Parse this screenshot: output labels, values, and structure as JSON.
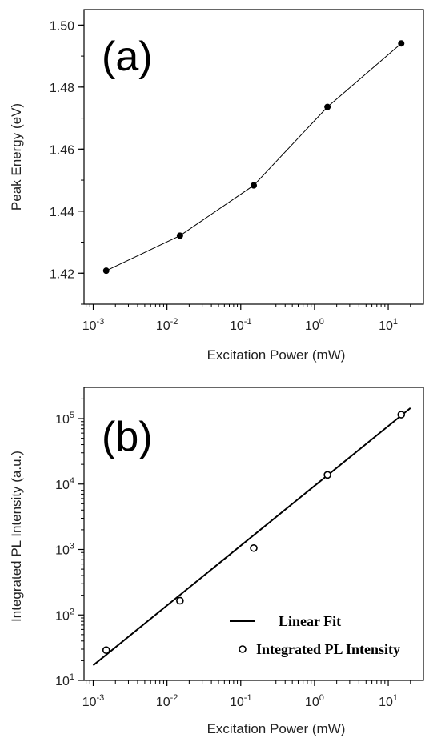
{
  "chart_data": [
    {
      "type": "line",
      "panel_label": "(a)",
      "xlabel": "Excitation Power (mW)",
      "ylabel": "Peak Energy (eV)",
      "xscale": "log",
      "xlim": [
        0.00075,
        30
      ],
      "ylim": [
        1.41,
        1.505
      ],
      "x_ticks": [
        {
          "base": "10",
          "exp": "-3",
          "value": 0.001
        },
        {
          "base": "10",
          "exp": "-2",
          "value": 0.01
        },
        {
          "base": "10",
          "exp": "-1",
          "value": 0.1
        },
        {
          "base": "10",
          "exp": "0",
          "value": 1
        },
        {
          "base": "10",
          "exp": "1",
          "value": 10
        }
      ],
      "y_ticks": [
        "1.42",
        "1.44",
        "1.46",
        "1.48",
        "1.50"
      ],
      "y_tick_values": [
        1.42,
        1.44,
        1.46,
        1.48,
        1.5
      ],
      "series": [
        {
          "x": [
            0.0015,
            0.015,
            0.15,
            1.5,
            15
          ],
          "y": [
            1.4208,
            1.4321,
            1.4483,
            1.4736,
            1.4941
          ],
          "marker": "filled-circle"
        }
      ]
    },
    {
      "type": "scatter",
      "panel_label": "(b)",
      "xlabel": "Excitation Power (mW)",
      "ylabel": "Integrated PL Intensity (a.u.)",
      "xscale": "log",
      "yscale": "log",
      "xlim": [
        0.00075,
        30
      ],
      "ylim": [
        10,
        300000
      ],
      "x_ticks": [
        {
          "base": "10",
          "exp": "-3",
          "value": 0.001
        },
        {
          "base": "10",
          "exp": "-2",
          "value": 0.01
        },
        {
          "base": "10",
          "exp": "-1",
          "value": 0.1
        },
        {
          "base": "10",
          "exp": "0",
          "value": 1
        },
        {
          "base": "10",
          "exp": "1",
          "value": 10
        }
      ],
      "y_ticks": [
        {
          "base": "10",
          "exp": "1",
          "value": 10
        },
        {
          "base": "10",
          "exp": "2",
          "value": 100
        },
        {
          "base": "10",
          "exp": "3",
          "value": 1000
        },
        {
          "base": "10",
          "exp": "4",
          "value": 10000
        },
        {
          "base": "10",
          "exp": "5",
          "value": 100000
        }
      ],
      "series": [
        {
          "name": "Integrated PL Intensity",
          "x": [
            0.0015,
            0.015,
            0.15,
            1.5,
            15
          ],
          "y": [
            29,
            165,
            1050,
            13800,
            115000
          ],
          "marker": "open-circle"
        },
        {
          "name": "Linear Fit",
          "x": [
            0.001,
            20
          ],
          "y": [
            17,
            145000
          ],
          "line": "solid"
        }
      ],
      "legend": {
        "position": "bottom-right",
        "entries": [
          "Linear Fit",
          "Integrated PL Intensity"
        ]
      }
    }
  ]
}
